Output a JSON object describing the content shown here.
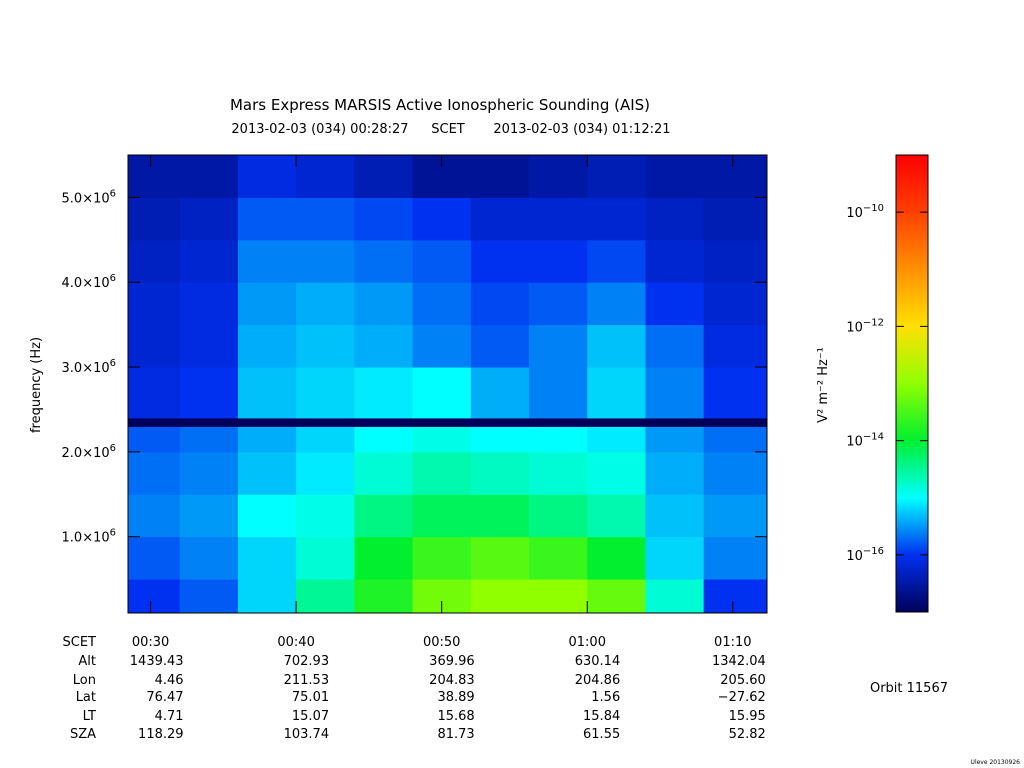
{
  "chart_data": {
    "type": "spectrogram",
    "title": "Mars Express MARSIS Active Ionospheric Sounding (AIS)",
    "start_label": "2013-02-03 (034) 00:28:27",
    "time_system": "SCET",
    "end_label": "2013-02-03 (034) 01:12:21",
    "ylabel": "frequency (Hz)",
    "xlim": [
      "00:28:27",
      "01:12:21"
    ],
    "xticks": [
      "00:30",
      "00:40",
      "00:50",
      "01:00",
      "01:10"
    ],
    "ylim": [
      100000,
      5500000
    ],
    "yticks": [
      {
        "value": 1000000,
        "label": "1.0×106"
      },
      {
        "value": 2000000,
        "label": "2.0×106"
      },
      {
        "value": 3000000,
        "label": "3.0×106"
      },
      {
        "value": 4000000,
        "label": "4.0×106"
      },
      {
        "value": 5000000,
        "label": "5.0×106"
      }
    ],
    "time_bins": [
      "00:28:27",
      "00:32",
      "00:36",
      "00:40",
      "00:44",
      "00:48",
      "00:52",
      "00:56",
      "01:00",
      "01:04",
      "01:08",
      "01:12:21"
    ],
    "freq_bins": [
      100000,
      500000,
      1000000,
      1500000,
      2000000,
      2300000,
      2400000,
      3000000,
      3500000,
      4000000,
      4500000,
      5000000,
      5500000
    ],
    "z": [
      [
        1e-16,
        1.6e-16,
        6.3e-16,
        3.2e-15,
        1.6e-14,
        6.3e-14,
        1e-13,
        1e-13,
        5e-14,
        1.6e-15,
        1e-16
      ],
      [
        1.6e-16,
        2.5e-16,
        6.3e-16,
        1.6e-15,
        1e-14,
        2.5e-14,
        4e-14,
        2.5e-14,
        1e-14,
        6.3e-16,
        2.5e-16
      ],
      [
        2.5e-16,
        3.2e-16,
        1e-15,
        1.3e-15,
        4e-15,
        6.3e-15,
        6.3e-15,
        4e-15,
        2.5e-15,
        5e-16,
        3.2e-16
      ],
      [
        2e-16,
        2.5e-16,
        5e-16,
        8e-16,
        1.6e-15,
        2.5e-15,
        2e-15,
        1.6e-15,
        1.3e-15,
        4e-16,
        2.5e-16
      ],
      [
        1.6e-16,
        2e-16,
        4e-16,
        6.3e-16,
        1e-15,
        1.3e-15,
        1e-15,
        1e-15,
        8e-16,
        3.2e-16,
        2e-16
      ],
      [
        1e-17,
        1e-17,
        1e-17,
        1e-17,
        1e-17,
        1e-17,
        1e-17,
        1e-17,
        1e-17,
        1e-17,
        1e-17
      ],
      [
        8e-17,
        1e-16,
        5e-16,
        6.3e-16,
        8e-16,
        1e-15,
        4e-16,
        2.5e-16,
        6.3e-16,
        2.5e-16,
        1e-16
      ],
      [
        6.3e-17,
        8e-17,
        4e-16,
        5e-16,
        4e-16,
        2.5e-16,
        1.6e-16,
        2.5e-16,
        5e-16,
        2e-16,
        8e-17
      ],
      [
        6.3e-17,
        8e-17,
        3.2e-16,
        4e-16,
        3.2e-16,
        2e-16,
        1.3e-16,
        1.6e-16,
        2.5e-16,
        1e-16,
        6.3e-17
      ],
      [
        5e-17,
        6.3e-17,
        2.5e-16,
        2.5e-16,
        2e-16,
        1.6e-16,
        1e-16,
        1e-16,
        1.3e-16,
        6.3e-17,
        5e-17
      ],
      [
        4e-17,
        5e-17,
        1.6e-16,
        1.6e-16,
        1.3e-16,
        1e-16,
        6.3e-17,
        6.3e-17,
        6.3e-17,
        5e-17,
        4e-17
      ],
      [
        3.2e-17,
        3.2e-17,
        8e-17,
        6.3e-17,
        4e-17,
        2.5e-17,
        2.5e-17,
        3.2e-17,
        4e-17,
        3.2e-17,
        3.2e-17
      ]
    ],
    "colorbar": {
      "label": "V² m⁻² Hz⁻¹",
      "lim": [
        1e-17,
        1e-09
      ],
      "log": true,
      "ticks": [
        {
          "value": 1e-16,
          "label": "10−16"
        },
        {
          "value": 1e-14,
          "label": "10−14"
        },
        {
          "value": 1e-12,
          "label": "10−12"
        },
        {
          "value": 1e-10,
          "label": "10−10"
        }
      ],
      "colors": [
        "#00005a",
        "#0030f0",
        "#00ffff",
        "#00f030",
        "#90ff00",
        "#ffe000",
        "#ff9000",
        "#ff4000",
        "#ff0000"
      ]
    },
    "ephemeris": {
      "labels": [
        "SCET",
        "Alt",
        "Lon",
        "Lat",
        "LT",
        "SZA"
      ],
      "rows": [
        [
          "1439.43",
          "702.93",
          "369.96",
          "630.14",
          "1342.04"
        ],
        [
          "4.46",
          "211.53",
          "204.83",
          "204.86",
          "205.60"
        ],
        [
          "76.47",
          "75.01",
          "38.89",
          "1.56",
          "−27.62"
        ],
        [
          "4.71",
          "15.07",
          "15.68",
          "15.84",
          "15.95"
        ],
        [
          "118.29",
          "103.74",
          "81.73",
          "61.55",
          "52.82"
        ]
      ]
    },
    "orbit": "Orbit 11567",
    "credit": "Uleve 20130926"
  }
}
